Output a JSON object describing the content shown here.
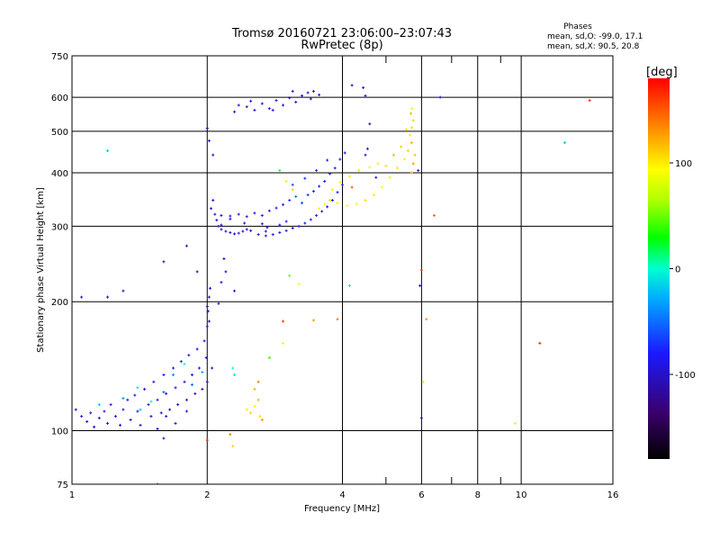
{
  "chart_data": {
    "type": "scatter",
    "title": "Tromsø 20160721 23:06:00–23:07:43",
    "subtitle": "RwPretec (8p)",
    "xlabel": "Frequency [MHz]",
    "ylabel": "Stationary phase Virtual Height [km]",
    "x_scale": "log",
    "y_scale": "log",
    "xlim": [
      1,
      16
    ],
    "ylim": [
      75,
      750
    ],
    "x_ticks": [
      1,
      2,
      4,
      6,
      8,
      10,
      16
    ],
    "x_tick_labels": [
      "1",
      "2",
      "4",
      "6",
      "8",
      "10",
      "16"
    ],
    "y_ticks": [
      75,
      100,
      200,
      300,
      400,
      500,
      600,
      750
    ],
    "y_tick_labels": [
      "75",
      "100",
      "200",
      "300",
      "400",
      "500",
      "600",
      "750"
    ],
    "grid": true,
    "stats": {
      "heading": "Phases",
      "line1": "mean, sd,O: -99.0, 17.1",
      "line2": "mean, sd,X:  90.5, 20.8"
    },
    "colorbar": {
      "label": "[deg]",
      "range": [
        -180,
        180
      ],
      "ticks": [
        100,
        0,
        -100
      ],
      "tick_labels": [
        "100",
        "0",
        "-100"
      ]
    },
    "series": [
      {
        "points": [
          [
            1.02,
            112,
            -95
          ],
          [
            1.05,
            108,
            -90
          ],
          [
            1.08,
            105,
            -100
          ],
          [
            1.1,
            110,
            -95
          ],
          [
            1.12,
            102,
            -105
          ],
          [
            1.15,
            107,
            -98
          ],
          [
            1.18,
            111,
            -92
          ],
          [
            1.2,
            104,
            -100
          ],
          [
            1.22,
            115,
            -90
          ],
          [
            1.25,
            108,
            -96
          ],
          [
            1.28,
            103,
            -102
          ],
          [
            1.3,
            112,
            -94
          ],
          [
            1.33,
            118,
            -88
          ],
          [
            1.35,
            106,
            -100
          ],
          [
            1.38,
            121,
            -85
          ],
          [
            1.4,
            111,
            -95
          ],
          [
            1.42,
            103,
            -100
          ],
          [
            1.45,
            125,
            -88
          ],
          [
            1.48,
            115,
            -92
          ],
          [
            1.5,
            108,
            -98
          ],
          [
            1.52,
            130,
            -85
          ],
          [
            1.55,
            118,
            -90
          ],
          [
            1.58,
            110,
            -97
          ],
          [
            1.6,
            135,
            -88
          ],
          [
            1.62,
            122,
            -94
          ],
          [
            1.65,
            112,
            -100
          ],
          [
            1.68,
            140,
            -86
          ],
          [
            1.7,
            126,
            -92
          ],
          [
            1.72,
            115,
            -99
          ],
          [
            1.75,
            145,
            -90
          ],
          [
            1.78,
            130,
            -94
          ],
          [
            1.8,
            118,
            -100
          ],
          [
            1.82,
            150,
            -88
          ],
          [
            1.85,
            135,
            -92
          ],
          [
            1.88,
            122,
            -98
          ],
          [
            1.9,
            155,
            -90
          ],
          [
            1.92,
            140,
            -95
          ],
          [
            1.95,
            125,
            -100
          ],
          [
            1.97,
            162,
            -88
          ],
          [
            1.99,
            148,
            -94
          ],
          [
            2.0,
            130,
            -100
          ],
          [
            2.0,
            175,
            -92
          ],
          [
            2.01,
            190,
            -95
          ],
          [
            2.02,
            205,
            -100
          ],
          [
            2.03,
            215,
            -98
          ],
          [
            1.42,
            112,
            -20
          ],
          [
            1.5,
            117,
            0
          ],
          [
            1.6,
            123,
            -60
          ],
          [
            1.68,
            135,
            -40
          ],
          [
            1.78,
            143,
            0
          ],
          [
            1.85,
            128,
            -50
          ],
          [
            1.95,
            137,
            -30
          ],
          [
            1.15,
            115,
            -20
          ],
          [
            1.3,
            119,
            -40
          ],
          [
            1.55,
            101,
            -100
          ],
          [
            1.62,
            108,
            -98
          ],
          [
            1.7,
            104,
            -102
          ],
          [
            1.8,
            111,
            -96
          ],
          [
            2.0,
            508,
            -100
          ],
          [
            2.02,
            475,
            -90
          ],
          [
            2.06,
            440,
            -95
          ],
          [
            2.04,
            330,
            -100
          ],
          [
            2.06,
            345,
            -95
          ],
          [
            2.08,
            320,
            -90
          ],
          [
            2.1,
            310,
            -100
          ],
          [
            2.12,
            300,
            -95
          ],
          [
            2.15,
            295,
            -100
          ],
          [
            2.2,
            292,
            -98
          ],
          [
            2.25,
            290,
            -96
          ],
          [
            2.3,
            288,
            -100
          ],
          [
            2.35,
            289,
            -98
          ],
          [
            2.4,
            292,
            -95
          ],
          [
            2.45,
            295,
            -100
          ],
          [
            2.5,
            293,
            -95
          ],
          [
            2.6,
            287,
            -92
          ],
          [
            2.7,
            285,
            -90
          ],
          [
            2.8,
            287,
            -88
          ],
          [
            2.9,
            290,
            -85
          ],
          [
            3.0,
            293,
            -92
          ],
          [
            3.1,
            297,
            -88
          ],
          [
            3.2,
            300,
            -85
          ],
          [
            3.3,
            305,
            -82
          ],
          [
            3.4,
            311,
            -80
          ],
          [
            3.5,
            318,
            -82
          ],
          [
            3.6,
            325,
            -85
          ],
          [
            3.7,
            333,
            -80
          ],
          [
            3.8,
            345,
            -78
          ],
          [
            3.9,
            360,
            -82
          ],
          [
            4.0,
            375,
            -80
          ],
          [
            2.15,
            318,
            -95
          ],
          [
            2.25,
            312,
            -92
          ],
          [
            2.35,
            320,
            -90
          ],
          [
            2.45,
            316,
            -95
          ],
          [
            2.55,
            322,
            -88
          ],
          [
            2.65,
            318,
            -92
          ],
          [
            2.75,
            326,
            -85
          ],
          [
            2.85,
            331,
            -80
          ],
          [
            2.95,
            337,
            -75
          ],
          [
            3.05,
            345,
            -70
          ],
          [
            3.15,
            352,
            -50
          ],
          [
            3.25,
            340,
            -60
          ],
          [
            3.35,
            355,
            -70
          ],
          [
            3.45,
            362,
            -80
          ],
          [
            3.55,
            372,
            -80
          ],
          [
            3.65,
            382,
            -85
          ],
          [
            3.75,
            398,
            -80
          ],
          [
            3.85,
            410,
            -85
          ],
          [
            3.95,
            430,
            -82
          ],
          [
            4.05,
            445,
            -80
          ],
          [
            3.1,
            375,
            -60
          ],
          [
            3.3,
            388,
            -70
          ],
          [
            3.5,
            405,
            -75
          ],
          [
            3.7,
            428,
            -80
          ],
          [
            2.9,
            405,
            20
          ],
          [
            3.0,
            382,
            100
          ],
          [
            3.1,
            365,
            110
          ],
          [
            2.45,
            570,
            -100
          ],
          [
            2.55,
            560,
            -95
          ],
          [
            2.65,
            580,
            -98
          ],
          [
            2.75,
            565,
            -100
          ],
          [
            2.85,
            590,
            -95
          ],
          [
            2.95,
            575,
            -90
          ],
          [
            3.05,
            598,
            -95
          ],
          [
            3.15,
            585,
            -100
          ],
          [
            3.25,
            605,
            -92
          ],
          [
            3.35,
            615,
            -98
          ],
          [
            3.45,
            620,
            -100
          ],
          [
            3.55,
            608,
            -95
          ],
          [
            2.5,
            588,
            -90
          ],
          [
            2.8,
            560,
            -96
          ],
          [
            3.1,
            620,
            -90
          ],
          [
            3.4,
            595,
            -94
          ],
          [
            2.3,
            555,
            -98
          ],
          [
            2.35,
            575,
            -92
          ],
          [
            3.55,
            330,
            100
          ],
          [
            3.65,
            338,
            95
          ],
          [
            3.75,
            345,
            105
          ],
          [
            3.9,
            340,
            100
          ],
          [
            4.1,
            335,
            95
          ],
          [
            4.3,
            338,
            100
          ],
          [
            4.5,
            345,
            105
          ],
          [
            4.7,
            355,
            100
          ],
          [
            4.9,
            370,
            95
          ],
          [
            5.1,
            390,
            100
          ],
          [
            5.3,
            410,
            105
          ],
          [
            5.5,
            430,
            100
          ],
          [
            5.6,
            450,
            110
          ],
          [
            5.7,
            470,
            120
          ],
          [
            5.65,
            490,
            100
          ],
          [
            5.7,
            510,
            105
          ],
          [
            5.75,
            530,
            110
          ],
          [
            5.68,
            550,
            120
          ],
          [
            5.72,
            565,
            100
          ],
          [
            5.8,
            440,
            115
          ],
          [
            5.75,
            420,
            130
          ],
          [
            5.7,
            400,
            125
          ],
          [
            3.8,
            365,
            100
          ],
          [
            3.95,
            380,
            95
          ],
          [
            4.15,
            392,
            100
          ],
          [
            4.35,
            405,
            105
          ],
          [
            4.6,
            412,
            95
          ],
          [
            4.8,
            420,
            100
          ],
          [
            5.0,
            415,
            105
          ],
          [
            5.2,
            440,
            120
          ],
          [
            5.4,
            460,
            110
          ],
          [
            5.55,
            505,
            100
          ],
          [
            4.2,
            370,
            150
          ],
          [
            2.45,
            112,
            100
          ],
          [
            2.5,
            110,
            110
          ],
          [
            2.55,
            114,
            100
          ],
          [
            2.6,
            118,
            120
          ],
          [
            2.62,
            108,
            105
          ],
          [
            2.65,
            106,
            130
          ],
          [
            2.55,
            125,
            120
          ],
          [
            2.6,
            130,
            140
          ],
          [
            2.3,
            135,
            -10
          ],
          [
            2.28,
            140,
            0
          ],
          [
            3.05,
            230,
            50
          ],
          [
            3.2,
            220,
            90
          ],
          [
            2.75,
            148,
            40
          ],
          [
            2.95,
            160,
            90
          ],
          [
            1.05,
            205,
            -95
          ],
          [
            1.2,
            205,
            -100
          ],
          [
            1.3,
            212,
            -98
          ],
          [
            1.6,
            248,
            -95
          ],
          [
            1.8,
            270,
            -100
          ],
          [
            1.9,
            235,
            -98
          ],
          [
            1.2,
            450,
            -20
          ],
          [
            2.15,
            222,
            -95
          ],
          [
            2.2,
            235,
            -100
          ],
          [
            2.18,
            252,
            -92
          ],
          [
            2.12,
            198,
            -95
          ],
          [
            2.3,
            212,
            -88
          ],
          [
            2.0,
            195,
            -100
          ],
          [
            2.95,
            180,
            160
          ],
          [
            3.45,
            181,
            130
          ],
          [
            3.9,
            182,
            140
          ],
          [
            4.15,
            218,
            -10
          ],
          [
            4.45,
            632,
            -100
          ],
          [
            4.2,
            640,
            -95
          ],
          [
            4.5,
            605,
            -100
          ],
          [
            4.6,
            520,
            -95
          ],
          [
            4.5,
            440,
            -100
          ],
          [
            4.55,
            455,
            -90
          ],
          [
            4.75,
            390,
            -95
          ],
          [
            5.9,
            405,
            -100
          ],
          [
            5.95,
            218,
            -100
          ],
          [
            6.0,
            237,
            170
          ],
          [
            6.15,
            182,
            130
          ],
          [
            6.4,
            318,
            150
          ],
          [
            6.05,
            130,
            70
          ],
          [
            6.6,
            600,
            -95
          ],
          [
            6.0,
            107,
            -100
          ],
          [
            9.7,
            104,
            100
          ],
          [
            11.0,
            160,
            170
          ],
          [
            12.5,
            470,
            -20
          ],
          [
            14.2,
            590,
            170
          ],
          [
            2.05,
            140,
            -100
          ],
          [
            2.0,
            95,
            170
          ],
          [
            2.25,
            98,
            140
          ],
          [
            2.28,
            92,
            110
          ],
          [
            1.55,
            75,
            -100
          ],
          [
            1.6,
            96,
            -95
          ],
          [
            1.4,
            126,
            -10
          ],
          [
            2.02,
            180,
            -95
          ],
          [
            2.15,
            302,
            -100
          ],
          [
            2.25,
            317,
            -95
          ],
          [
            2.42,
            305,
            -98
          ],
          [
            2.7,
            292,
            -95
          ],
          [
            2.65,
            304,
            -90
          ],
          [
            2.72,
            298,
            -100
          ],
          [
            2.9,
            302,
            -85
          ],
          [
            3.0,
            308,
            -80
          ]
        ]
      }
    ]
  }
}
